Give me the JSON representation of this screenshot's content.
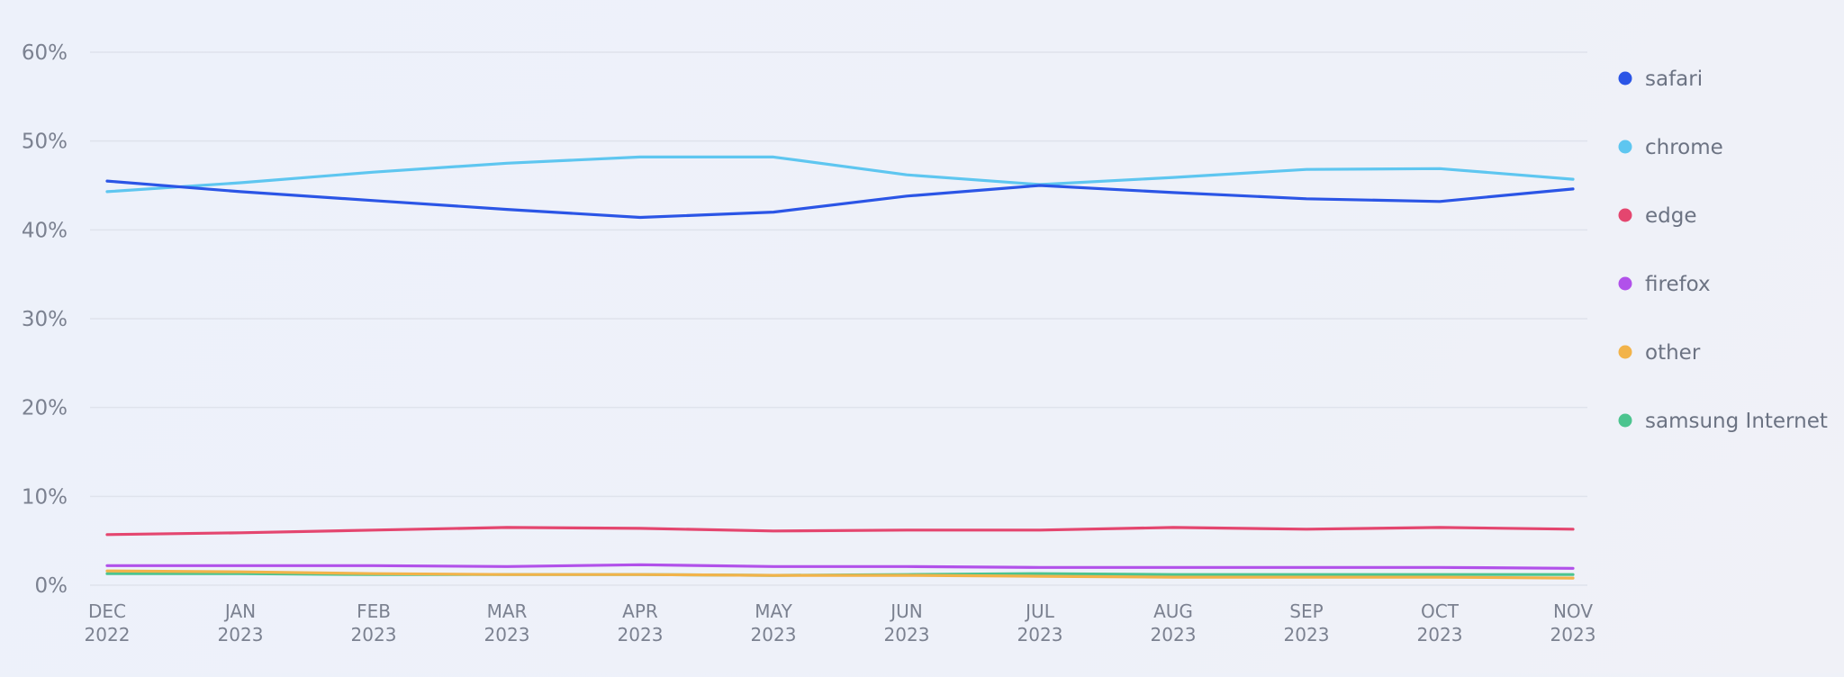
{
  "chart_data": {
    "type": "line",
    "title": "",
    "xlabel": "",
    "ylabel": "",
    "ylim": [
      0,
      60
    ],
    "yticks": [
      "0%",
      "10%",
      "20%",
      "30%",
      "40%",
      "50%",
      "60%"
    ],
    "ytick_values": [
      0,
      10,
      20,
      30,
      40,
      50,
      60
    ],
    "grid": true,
    "legend_position": "right",
    "x": [
      {
        "month": "DEC",
        "year": "2022"
      },
      {
        "month": "JAN",
        "year": "2023"
      },
      {
        "month": "FEB",
        "year": "2023"
      },
      {
        "month": "MAR",
        "year": "2023"
      },
      {
        "month": "APR",
        "year": "2023"
      },
      {
        "month": "MAY",
        "year": "2023"
      },
      {
        "month": "JUN",
        "year": "2023"
      },
      {
        "month": "JUL",
        "year": "2023"
      },
      {
        "month": "AUG",
        "year": "2023"
      },
      {
        "month": "SEP",
        "year": "2023"
      },
      {
        "month": "OCT",
        "year": "2023"
      },
      {
        "month": "NOV",
        "year": "2023"
      }
    ],
    "series": [
      {
        "name": "safari",
        "color": "#2b55e6",
        "values": [
          45.5,
          44.3,
          43.3,
          42.3,
          41.4,
          42.0,
          43.8,
          45.0,
          44.2,
          43.5,
          43.2,
          44.6
        ]
      },
      {
        "name": "chrome",
        "color": "#5ec6f0",
        "values": [
          44.3,
          45.3,
          46.5,
          47.5,
          48.2,
          48.2,
          46.2,
          45.1,
          45.9,
          46.8,
          46.9,
          45.7
        ]
      },
      {
        "name": "edge",
        "color": "#e4466f",
        "values": [
          5.7,
          5.9,
          6.2,
          6.5,
          6.4,
          6.1,
          6.2,
          6.2,
          6.5,
          6.3,
          6.5,
          6.3
        ]
      },
      {
        "name": "firefox",
        "color": "#b151ea",
        "values": [
          2.2,
          2.2,
          2.2,
          2.1,
          2.3,
          2.1,
          2.1,
          2.0,
          2.0,
          2.0,
          2.0,
          1.9
        ]
      },
      {
        "name": "other",
        "color": "#f2b34a",
        "values": [
          1.6,
          1.5,
          1.3,
          1.2,
          1.2,
          1.1,
          1.1,
          1.0,
          0.9,
          0.9,
          0.9,
          0.8
        ]
      },
      {
        "name": "samsung Internet",
        "color": "#4cc48f",
        "values": [
          1.3,
          1.3,
          1.2,
          1.2,
          1.2,
          1.1,
          1.2,
          1.3,
          1.2,
          1.2,
          1.2,
          1.2
        ]
      }
    ]
  }
}
